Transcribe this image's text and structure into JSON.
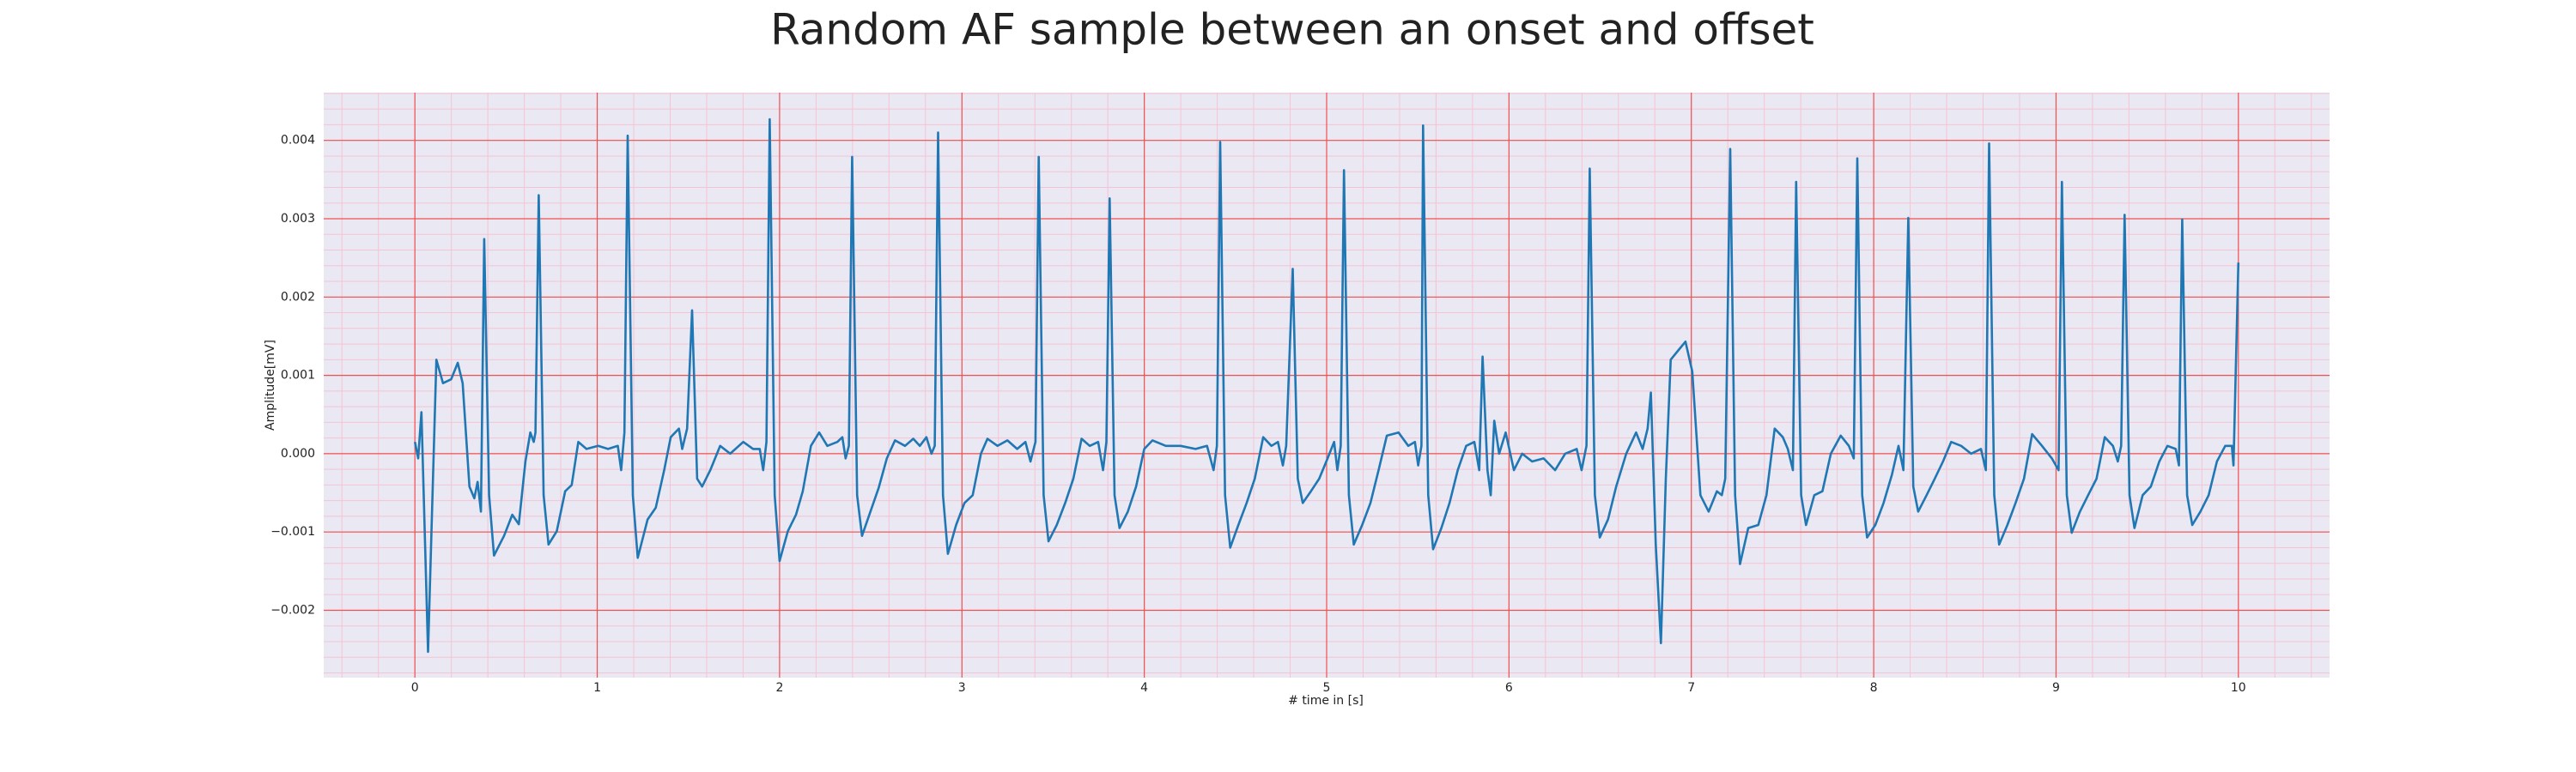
{
  "chart_data": {
    "type": "line",
    "title": "Random AF sample between an onset and offset",
    "xlabel": "# time in [s]",
    "ylabel": "Amplitude[mV]",
    "color": "#1f77b4",
    "grid": true,
    "minor_grid": true,
    "xlim": [
      -0.5,
      10.5
    ],
    "xticks": [
      0,
      1,
      2,
      3,
      4,
      5,
      6,
      7,
      8,
      9,
      10
    ],
    "ylim": [
      -0.00286,
      0.00461
    ],
    "yticks": [
      {
        "value": -0.002,
        "label": "−0.002"
      },
      {
        "value": -0.001,
        "label": "−0.001"
      },
      {
        "value": 0,
        "label": "0.000"
      },
      {
        "value": 0.001,
        "label": "0.001"
      },
      {
        "value": 0.002,
        "label": "0.002"
      },
      {
        "value": 0.003,
        "label": "0.003"
      },
      {
        "value": 0.004,
        "label": "0.004"
      }
    ],
    "x": [
      0,
      0.018,
      0.036,
      0.072,
      0.118,
      0.154,
      0.199,
      0.235,
      0.262,
      0.299,
      0.326,
      0.344,
      0.362,
      0.38,
      0.407,
      0.434,
      0.489,
      0.534,
      0.57,
      0.606,
      0.633,
      0.652,
      0.661,
      0.679,
      0.706,
      0.733,
      0.778,
      0.824,
      0.86,
      0.896,
      0.941,
      1.005,
      1.059,
      1.113,
      1.131,
      1.149,
      1.167,
      1.195,
      1.222,
      1.276,
      1.321,
      1.367,
      1.403,
      1.448,
      1.466,
      1.493,
      1.52,
      1.548,
      1.575,
      1.62,
      1.674,
      1.729,
      1.801,
      1.855,
      1.891,
      1.91,
      1.928,
      1.946,
      1.973,
      2.0,
      2.045,
      2.09,
      2.127,
      2.172,
      2.217,
      2.262,
      2.317,
      2.344,
      2.362,
      2.38,
      2.398,
      2.425,
      2.452,
      2.498,
      2.543,
      2.588,
      2.633,
      2.688,
      2.733,
      2.769,
      2.805,
      2.833,
      2.851,
      2.869,
      2.896,
      2.923,
      2.968,
      3.014,
      3.059,
      3.104,
      3.14,
      3.195,
      3.249,
      3.303,
      3.348,
      3.376,
      3.403,
      3.421,
      3.448,
      3.475,
      3.52,
      3.566,
      3.611,
      3.656,
      3.701,
      3.747,
      3.774,
      3.792,
      3.81,
      3.837,
      3.864,
      3.91,
      3.955,
      4.0,
      4.045,
      4.118,
      4.199,
      4.281,
      4.344,
      4.38,
      4.398,
      4.416,
      4.443,
      4.471,
      4.516,
      4.561,
      4.606,
      4.652,
      4.697,
      4.733,
      4.76,
      4.778,
      4.814,
      4.842,
      4.869,
      4.914,
      4.959,
      5.005,
      5.041,
      5.059,
      5.077,
      5.095,
      5.122,
      5.149,
      5.195,
      5.24,
      5.285,
      5.33,
      5.394,
      5.448,
      5.484,
      5.502,
      5.52,
      5.529,
      5.557,
      5.584,
      5.629,
      5.674,
      5.719,
      5.765,
      5.81,
      5.837,
      5.855,
      5.882,
      5.9,
      5.919,
      5.946,
      5.982,
      6.027,
      6.072,
      6.127,
      6.19,
      6.253,
      6.308,
      6.371,
      6.398,
      6.425,
      6.443,
      6.471,
      6.498,
      6.543,
      6.588,
      6.643,
      6.697,
      6.733,
      6.76,
      6.778,
      6.805,
      6.833,
      6.86,
      6.887,
      6.932,
      6.968,
      7.005,
      7.05,
      7.095,
      7.14,
      7.167,
      7.186,
      7.213,
      7.24,
      7.267,
      7.312,
      7.367,
      7.412,
      7.457,
      7.502,
      7.529,
      7.557,
      7.575,
      7.602,
      7.629,
      7.674,
      7.719,
      7.765,
      7.819,
      7.864,
      7.891,
      7.91,
      7.937,
      7.964,
      8.009,
      8.054,
      8.1,
      8.136,
      8.163,
      8.19,
      8.217,
      8.244,
      8.29,
      8.335,
      8.38,
      8.425,
      8.48,
      8.534,
      8.588,
      8.615,
      8.633,
      8.661,
      8.688,
      8.733,
      8.778,
      8.824,
      8.869,
      8.923,
      8.977,
      9.014,
      9.032,
      9.059,
      9.086,
      9.131,
      9.176,
      9.222,
      9.267,
      9.312,
      9.339,
      9.357,
      9.376,
      9.403,
      9.43,
      9.475,
      9.52,
      9.566,
      9.611,
      9.656,
      9.674,
      9.692,
      9.719,
      9.747,
      9.792,
      9.837,
      9.882,
      9.928,
      9.964,
      9.973,
      10.0
    ],
    "values": [
      0.00015,
      -6e-05,
      0.00053,
      -0.00253,
      0.0012,
      0.0009,
      0.00095,
      0.00116,
      0.0009,
      -0.00042,
      -0.00057,
      -0.00036,
      -0.00074,
      0.00274,
      -0.00053,
      -0.0013,
      -0.00105,
      -0.00078,
      -0.0009,
      -0.0001,
      0.00027,
      0.00015,
      0.00027,
      0.0033,
      -0.00053,
      -0.00116,
      -0.00099,
      -0.00048,
      -0.0004,
      0.00015,
      6e-05,
      0.0001,
      6e-05,
      0.0001,
      -0.00021,
      0.00027,
      0.00406,
      -0.00053,
      -0.00133,
      -0.00084,
      -0.00069,
      -0.00021,
      0.00021,
      0.00032,
      6e-05,
      0.00032,
      0.00183,
      -0.00032,
      -0.00042,
      -0.00021,
      0.0001,
      0,
      0.00015,
      6e-05,
      6e-05,
      -0.00021,
      0.00015,
      0.00427,
      -0.00053,
      -0.00137,
      -0.00099,
      -0.00078,
      -0.00048,
      0.0001,
      0.00027,
      0.0001,
      0.00015,
      0.00021,
      -6e-05,
      0.0001,
      0.00379,
      -0.00053,
      -0.00105,
      -0.00074,
      -0.00044,
      -6e-05,
      0.00017,
      0.0001,
      0.00019,
      0.0001,
      0.00021,
      0,
      0.0001,
      0.0041,
      -0.00053,
      -0.00128,
      -0.00091,
      -0.00063,
      -0.00053,
      0,
      0.00019,
      0.0001,
      0.00017,
      6e-05,
      0.00015,
      -0.0001,
      0.00015,
      0.00379,
      -0.00053,
      -0.00112,
      -0.00091,
      -0.00063,
      -0.00032,
      0.00019,
      0.0001,
      0.00015,
      -0.00021,
      0.00015,
      0.00326,
      -0.00053,
      -0.00095,
      -0.00074,
      -0.00042,
      6e-05,
      0.00017,
      0.0001,
      0.0001,
      6e-05,
      0.0001,
      -0.00021,
      0.0001,
      0.00398,
      -0.00053,
      -0.0012,
      -0.00091,
      -0.00063,
      -0.00032,
      0.00021,
      0.0001,
      0.00015,
      -0.00015,
      0.0001,
      0.00236,
      -0.00032,
      -0.00063,
      -0.00048,
      -0.00032,
      -6e-05,
      0.00015,
      -0.00021,
      0.0001,
      0.00362,
      -0.00053,
      -0.00116,
      -0.00091,
      -0.00063,
      -0.00021,
      0.00023,
      0.00027,
      0.0001,
      0.00015,
      -0.00015,
      0.0001,
      0.00419,
      -0.00053,
      -0.00122,
      -0.00095,
      -0.00063,
      -0.00021,
      0.0001,
      0.00015,
      -0.00021,
      0.00124,
      -0.00021,
      -0.00053,
      0.00042,
      0,
      0.00027,
      -0.00021,
      0,
      -0.0001,
      -6e-05,
      -0.00021,
      0,
      6e-05,
      -0.00021,
      0.0001,
      0.00364,
      -0.00053,
      -0.00107,
      -0.00084,
      -0.00042,
      0,
      0.00027,
      6e-05,
      0.00032,
      0.00078,
      -0.00116,
      -0.00242,
      -0.00032,
      0.0012,
      0.00133,
      0.00143,
      0.00105,
      -0.00053,
      -0.00074,
      -0.00048,
      -0.00053,
      -0.00032,
      0.00389,
      -0.00053,
      -0.00141,
      -0.00095,
      -0.00091,
      -0.00053,
      0.00032,
      0.00021,
      6e-05,
      -0.00021,
      0.00347,
      -0.00053,
      -0.00091,
      -0.00053,
      -0.00048,
      0,
      0.00023,
      0.0001,
      -6e-05,
      0.00377,
      -0.00053,
      -0.00107,
      -0.00091,
      -0.00063,
      -0.00027,
      0.0001,
      -0.00021,
      0.00301,
      -0.00042,
      -0.00074,
      -0.00053,
      -0.00032,
      -0.0001,
      0.00015,
      0.0001,
      0,
      6e-05,
      -0.00021,
      0.00396,
      -0.00053,
      -0.00116,
      -0.00091,
      -0.00063,
      -0.00032,
      0.00025,
      0.0001,
      -6e-05,
      -0.00021,
      0.00347,
      -0.00053,
      -0.00101,
      -0.00074,
      -0.00053,
      -0.00032,
      0.00021,
      0.0001,
      -0.0001,
      0.0001,
      0.00305,
      -0.00053,
      -0.00095,
      -0.00053,
      -0.00042,
      -0.0001,
      0.0001,
      6e-05,
      -0.00015,
      0.00299,
      -0.00053,
      -0.00091,
      -0.00074,
      -0.00053,
      -0.0001,
      0.0001,
      0.0001,
      -0.00015,
      0.00244
    ]
  }
}
